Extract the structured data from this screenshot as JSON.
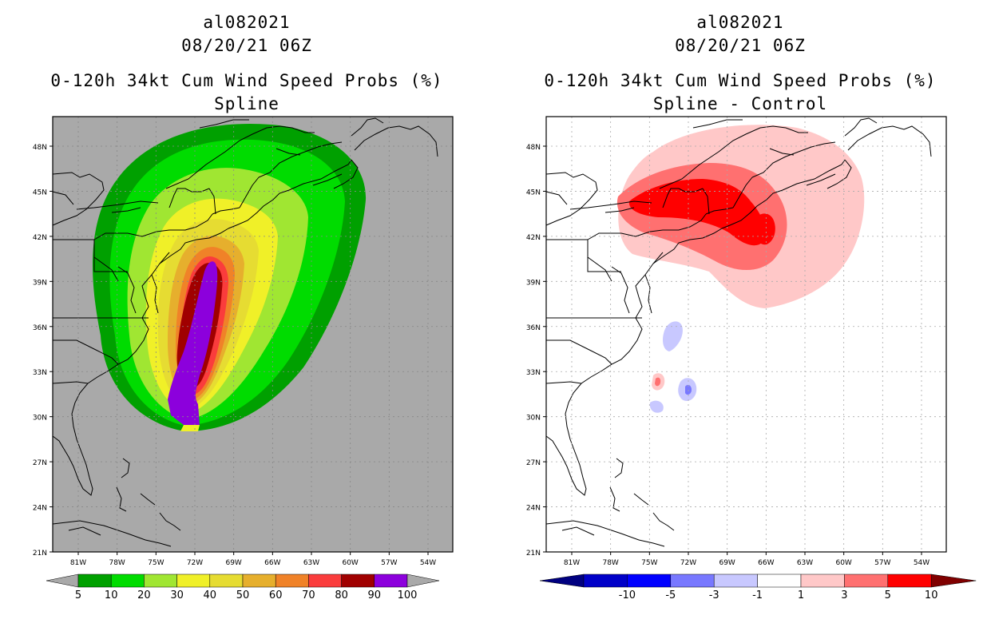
{
  "panels": [
    {
      "storm_id": "al082021",
      "datetime": "08/20/21 06Z",
      "product": "0-120h 34kt Cum Wind Speed Probs (%)",
      "subtitle": "Spline",
      "background": "#a9a9a9",
      "colorbar": {
        "labels": [
          "5",
          "10",
          "20",
          "30",
          "40",
          "50",
          "60",
          "70",
          "80",
          "90",
          "100"
        ],
        "colors": [
          "#00a000",
          "#00dc00",
          "#a0e632",
          "#f0f028",
          "#e6dc32",
          "#e6af2d",
          "#f08228",
          "#fa3c3c",
          "#a00000",
          "#8c00dc"
        ],
        "end_color": "#a9a9a9"
      }
    },
    {
      "storm_id": "al082021",
      "datetime": "08/20/21 06Z",
      "product": "0-120h 34kt Cum Wind Speed Probs (%)",
      "subtitle": "Spline - Control",
      "background": "#ffffff",
      "colorbar": {
        "labels": [
          "-10",
          "-5",
          "-3",
          "-1",
          "1",
          "3",
          "5",
          "10"
        ],
        "colors": [
          "#0000c8",
          "#0000ff",
          "#7878ff",
          "#c8c8ff",
          "#ffffff",
          "#ffc8c8",
          "#ff7070",
          "#ff0000"
        ],
        "end_left": "#000080",
        "end_right": "#800000"
      }
    }
  ],
  "axes": {
    "lat_labels": [
      "48N",
      "45N",
      "42N",
      "39N",
      "36N",
      "33N",
      "30N",
      "27N",
      "24N",
      "21N"
    ],
    "lon_labels": [
      "81W",
      "78W",
      "75W",
      "72W",
      "69W",
      "66W",
      "63W",
      "60W",
      "57W",
      "54W"
    ]
  }
}
